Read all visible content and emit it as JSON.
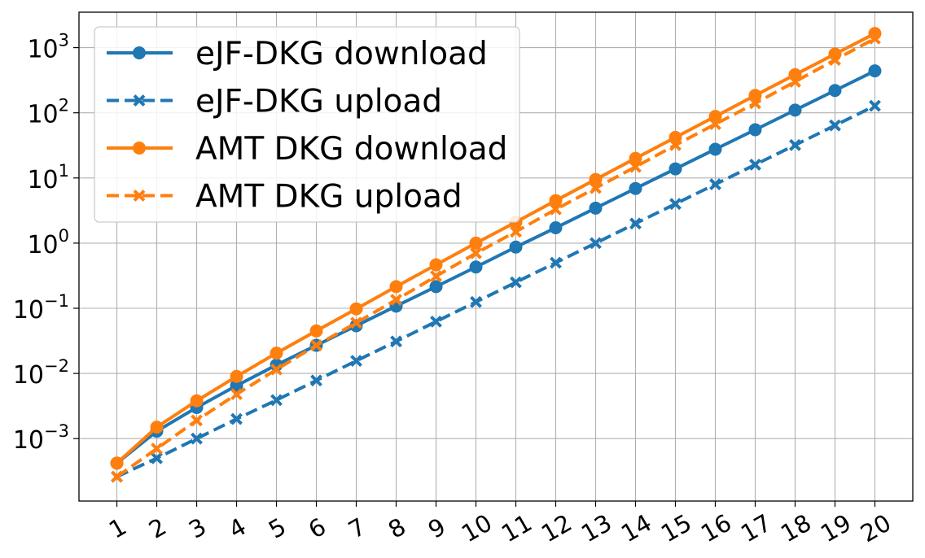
{
  "chart_data": {
    "type": "line",
    "title": "",
    "xlabel": "",
    "ylabel": "",
    "x": [
      1,
      2,
      3,
      4,
      5,
      6,
      7,
      8,
      9,
      10,
      11,
      12,
      13,
      14,
      15,
      16,
      17,
      18,
      19,
      20
    ],
    "yscale": "log",
    "ylim": [
      0.00011,
      3500
    ],
    "yticks": [
      {
        "value": 0.001,
        "base": "10",
        "exp": "−3"
      },
      {
        "value": 0.01,
        "base": "10",
        "exp": "−2"
      },
      {
        "value": 0.1,
        "base": "10",
        "exp": "−1"
      },
      {
        "value": 1,
        "base": "10",
        "exp": "0"
      },
      {
        "value": 10,
        "base": "10",
        "exp": "1"
      },
      {
        "value": 100,
        "base": "10",
        "exp": "2"
      },
      {
        "value": 1000,
        "base": "10",
        "exp": "3"
      }
    ],
    "grid": true,
    "legend_position": "top-left",
    "series": [
      {
        "name": "eJF-DKG download",
        "color": "#1f77b4",
        "style": "solid",
        "marker": "circle",
        "values": [
          0.00042,
          0.0013,
          0.003,
          0.0065,
          0.0135,
          0.027,
          0.054,
          0.108,
          0.215,
          0.43,
          0.87,
          1.72,
          3.45,
          6.9,
          13.8,
          27.6,
          55,
          110,
          220,
          440
        ]
      },
      {
        "name": "eJF-DKG upload",
        "color": "#1f77b4",
        "style": "dashed",
        "marker": "x",
        "values": [
          0.00026,
          0.0005,
          0.001,
          0.002,
          0.0039,
          0.0078,
          0.0156,
          0.031,
          0.0625,
          0.125,
          0.25,
          0.5,
          1.0,
          2.0,
          4.0,
          8.0,
          16,
          32,
          64,
          128
        ]
      },
      {
        "name": "AMT DKG download",
        "color": "#ff7f0e",
        "style": "solid",
        "marker": "circle",
        "values": [
          0.00042,
          0.0015,
          0.0038,
          0.009,
          0.0205,
          0.045,
          0.098,
          0.215,
          0.465,
          1.0,
          2.1,
          4.5,
          9.5,
          20,
          42,
          88,
          185,
          385,
          800,
          1650
        ]
      },
      {
        "name": "AMT DKG upload",
        "color": "#ff7f0e",
        "style": "dashed",
        "marker": "x",
        "values": [
          0.00026,
          0.0007,
          0.0019,
          0.0048,
          0.0115,
          0.027,
          0.06,
          0.135,
          0.31,
          0.7,
          1.5,
          3.3,
          7.0,
          14.8,
          32,
          67,
          140,
          300,
          650,
          1380
        ]
      }
    ]
  }
}
